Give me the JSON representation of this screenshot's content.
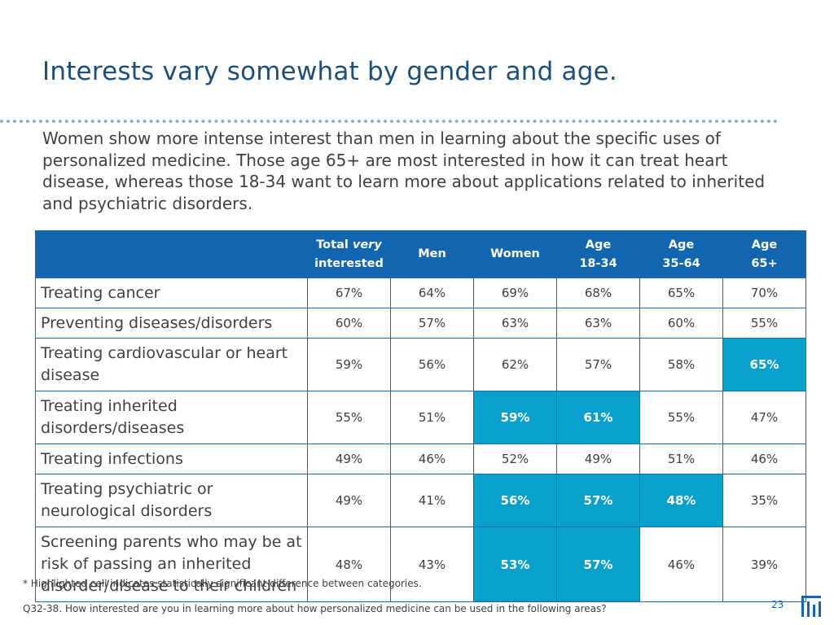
{
  "slide": {
    "title": "Interests vary somewhat by gender and age.",
    "subtitle": "Women show more intense interest than men in learning about the specific uses of personalized medicine. Those age 65+ are most interested in how it can treat heart disease, whereas those 18-34 want to learn more about applications related to inherited and psychiatric disorders."
  },
  "table": {
    "headers": {
      "total_line1_a": "Total ",
      "total_line1_b": "very",
      "total_line2": "interested",
      "men": "Men",
      "women": "Women",
      "age1_l1": "Age",
      "age1_l2": "18-34",
      "age2_l1": "Age",
      "age2_l2": "35-64",
      "age3_l1": "Age",
      "age3_l2": "65+"
    },
    "rows": [
      {
        "label": "Treating cancer",
        "values": [
          "67%",
          "64%",
          "69%",
          "68%",
          "65%",
          "70%"
        ]
      },
      {
        "label": "Preventing diseases/disorders",
        "values": [
          "60%",
          "57%",
          "63%",
          "63%",
          "60%",
          "55%"
        ]
      },
      {
        "label": "Treating cardiovascular or heart disease",
        "values": [
          "59%",
          "56%",
          "62%",
          "57%",
          "58%",
          "65%"
        ]
      },
      {
        "label": "Treating inherited disorders/diseases",
        "values": [
          "55%",
          "51%",
          "59%",
          "61%",
          "55%",
          "47%"
        ]
      },
      {
        "label": "Treating infections",
        "values": [
          "49%",
          "46%",
          "52%",
          "49%",
          "51%",
          "46%"
        ]
      },
      {
        "label": "Treating psychiatric or neurological disorders",
        "values": [
          "49%",
          "41%",
          "56%",
          "57%",
          "48%",
          "35%"
        ]
      },
      {
        "label": "Screening parents who may be at risk of passing an inherited disorder/disease to their children",
        "values": [
          "48%",
          "43%",
          "53%",
          "57%",
          "46%",
          "39%"
        ]
      }
    ],
    "highlight_color": "#0aa0cc",
    "header_color": "#1266b0"
  },
  "footer": {
    "footnote": "* Highlighted cell indicates statistically significant difference between categories.",
    "question": "Q32-38. How interested are you in learning more about how personalized medicine can be used in the following areas?",
    "page_number": "23"
  },
  "icons": {
    "logo": "company-logo-icon"
  }
}
